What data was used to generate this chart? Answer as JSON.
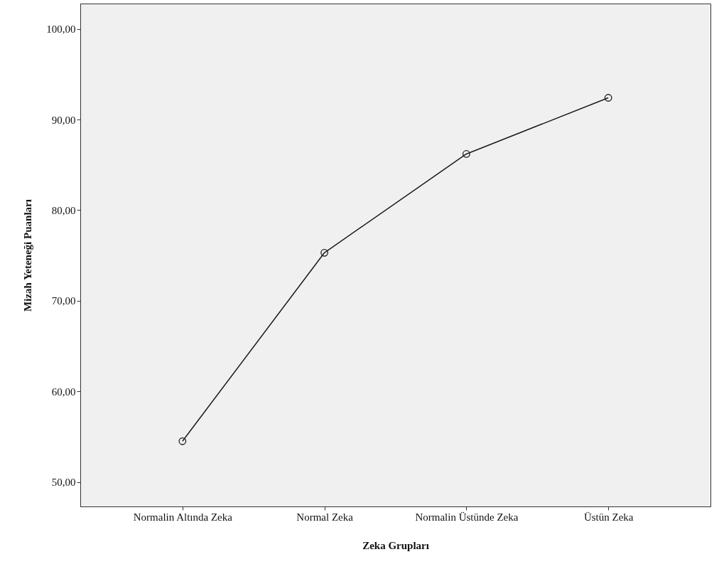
{
  "chart_data": {
    "type": "line",
    "xlabel": "Zeka Grupları",
    "ylabel": "Mizah Yeteneği Puanları",
    "categories": [
      "Normalin Altında Zeka",
      "Normal Zeka",
      "Normalin Üstünde Zeka",
      "Üstün Zeka"
    ],
    "series": [
      {
        "color": "#1a1a1a",
        "values": [
          54.5,
          75.3,
          86.2,
          92.4
        ]
      }
    ],
    "ylim": [
      47.3,
      102.8
    ],
    "yticks": [
      {
        "value": 50,
        "label": "50,00"
      },
      {
        "value": 60,
        "label": "60,00"
      },
      {
        "value": 70,
        "label": "70,00"
      },
      {
        "value": 80,
        "label": "80,00"
      },
      {
        "value": 90,
        "label": "90,00"
      },
      {
        "value": 100,
        "label": "100,00"
      }
    ],
    "grid": false,
    "marker": "circle",
    "line_style": "solid"
  }
}
